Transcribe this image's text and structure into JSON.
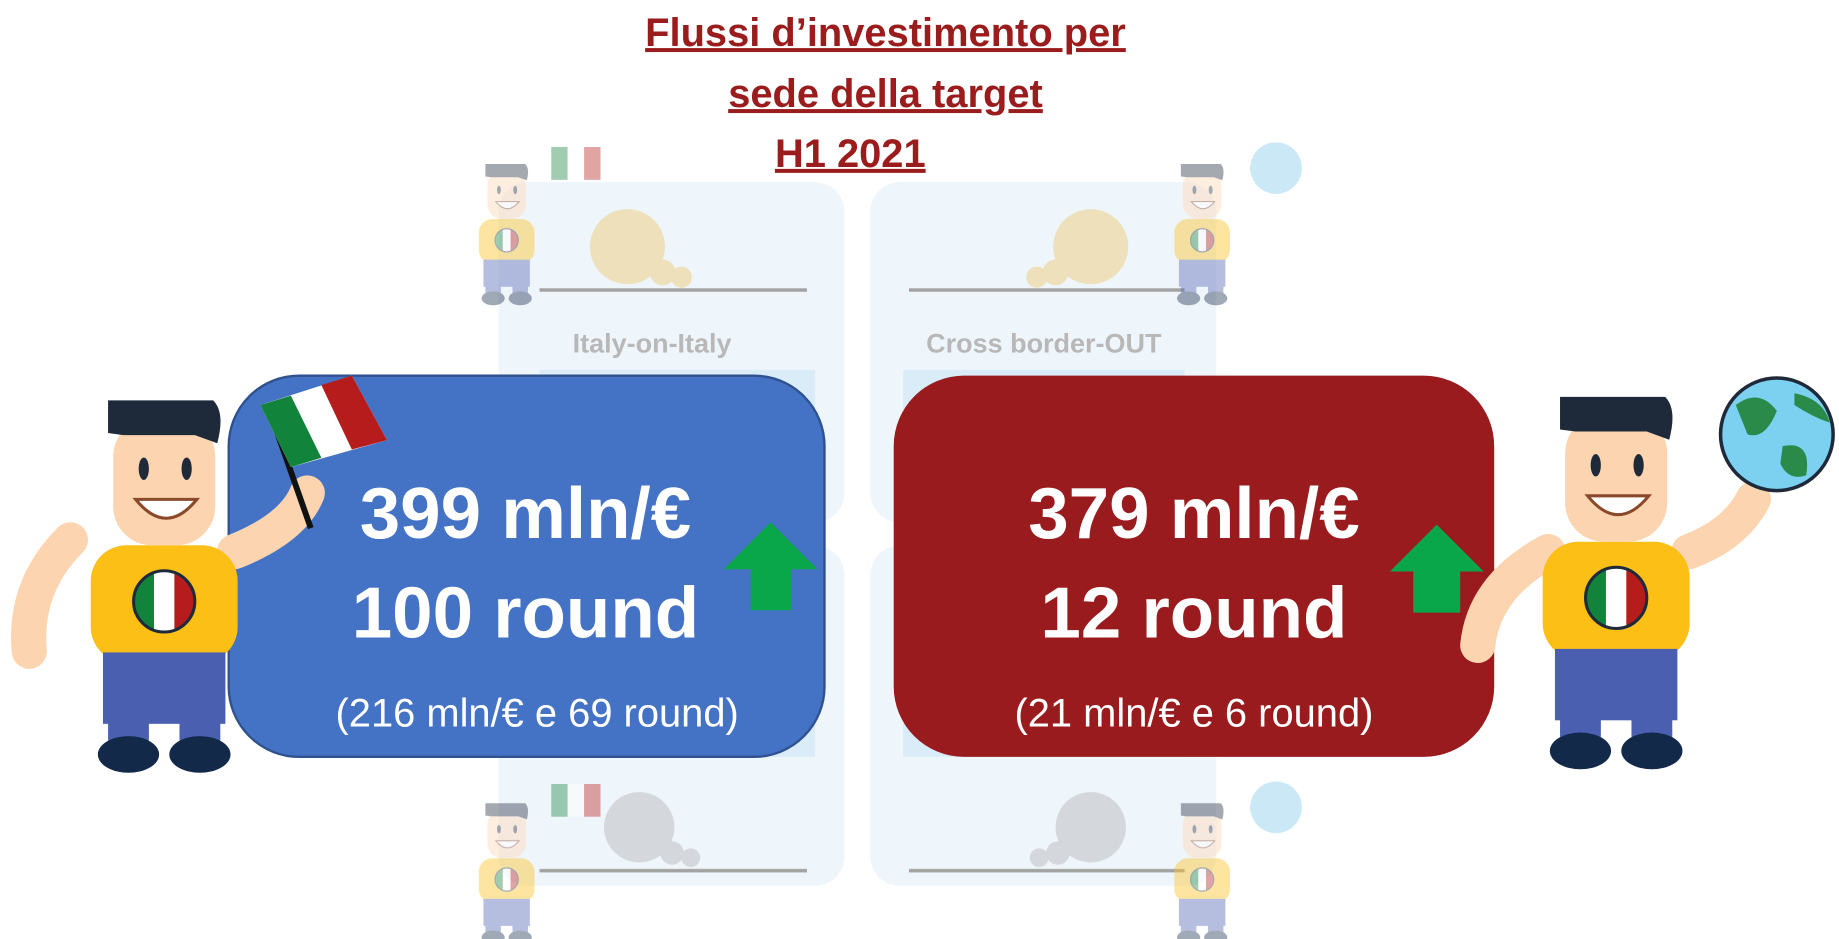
{
  "title": [
    "Flussi d’investimento per",
    "sede della target",
    "H1 2021"
  ],
  "background_labels": [
    "Italy-on-Italy",
    "Cross border-OUT"
  ],
  "cards": [
    {
      "amount": "399 mln/€",
      "rounds": "100 round",
      "previous": "(216 mln/€ e 69 round)"
    },
    {
      "amount": "379 mln/€",
      "rounds": "12 round",
      "previous": "(21 mln/€ e 6 round)"
    }
  ]
}
